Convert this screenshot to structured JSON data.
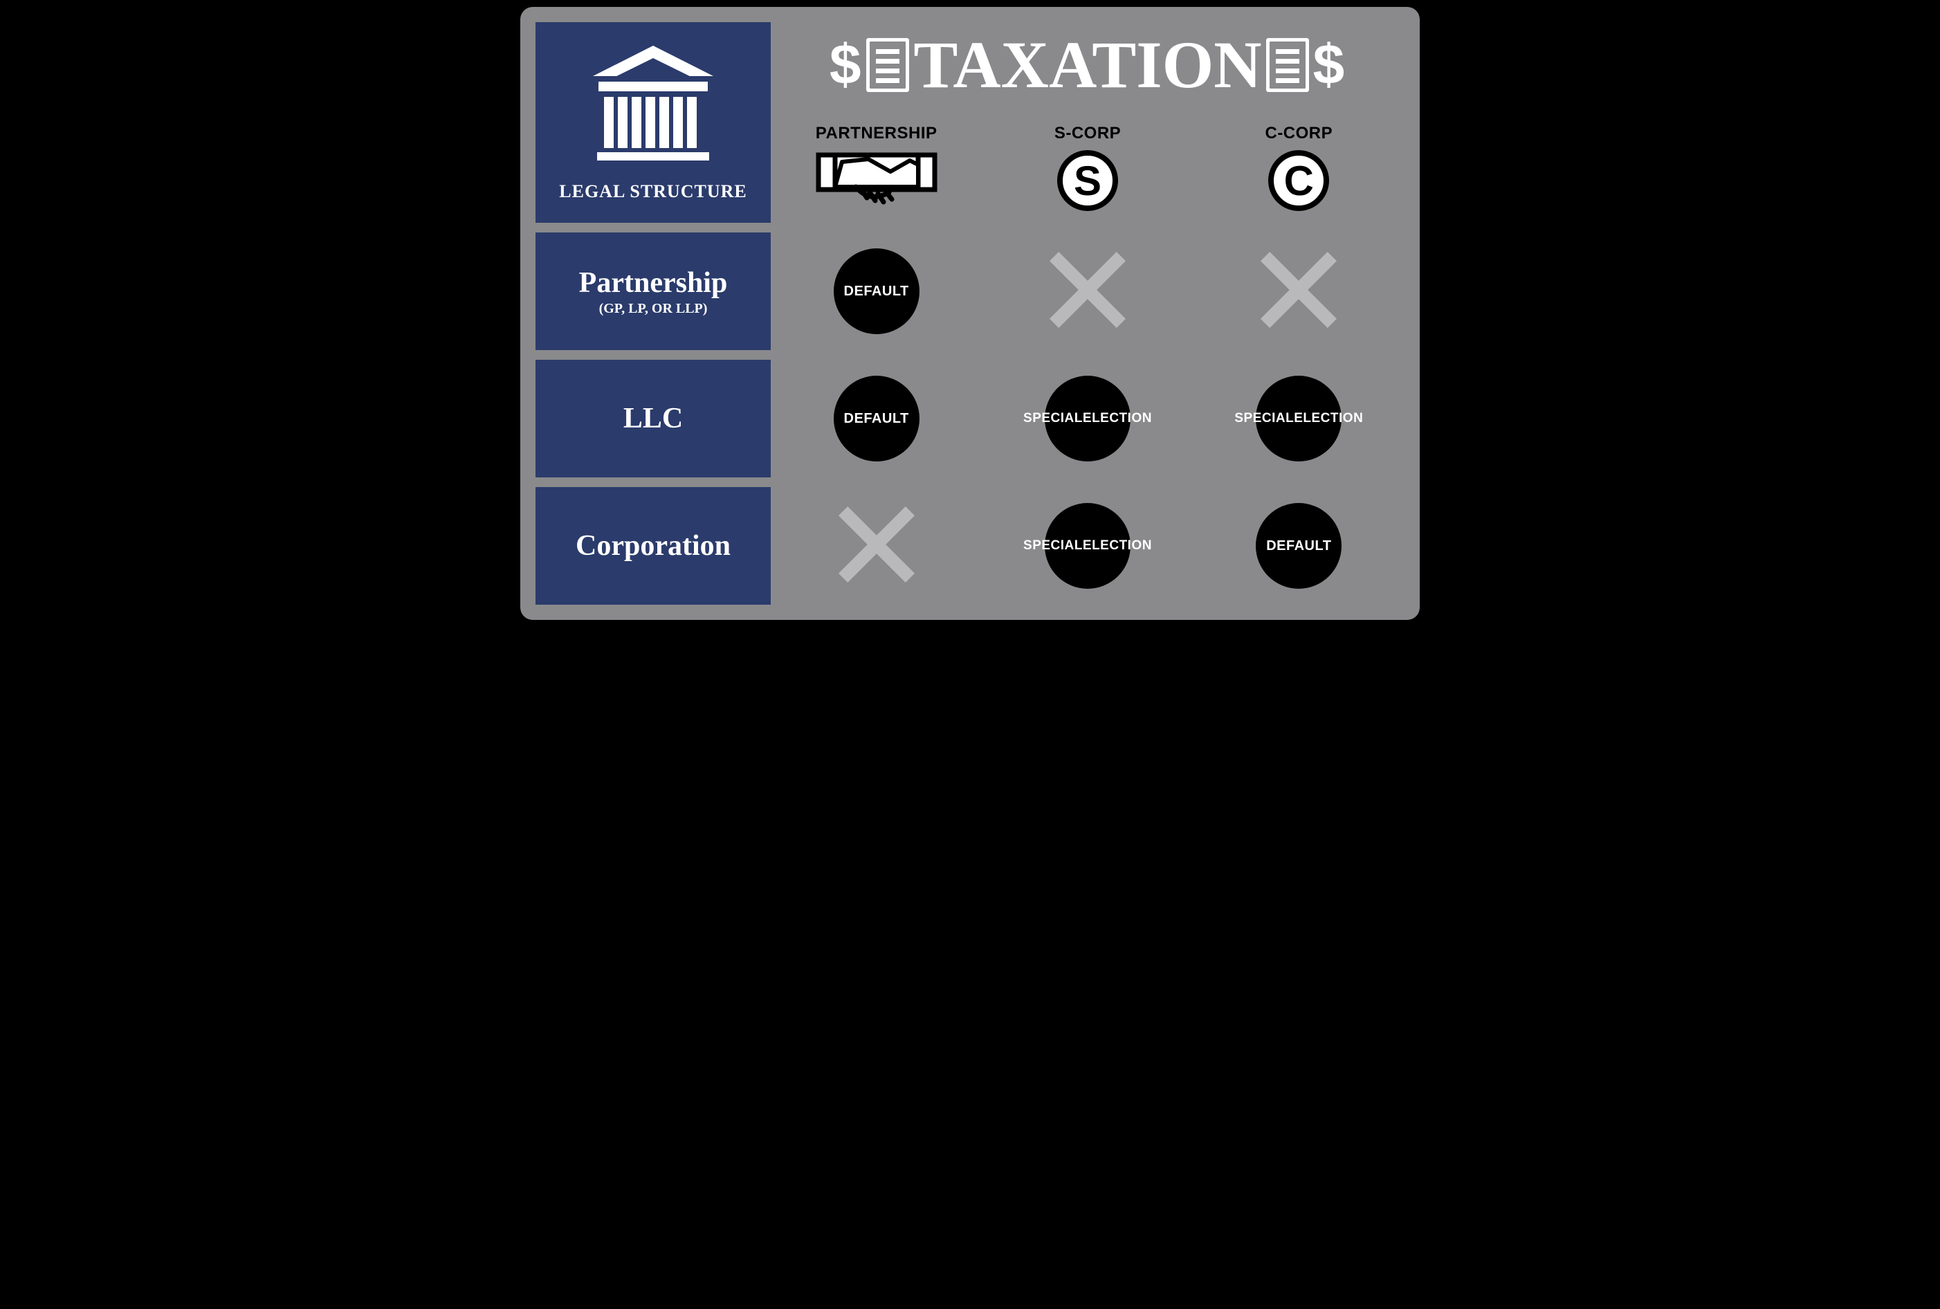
{
  "colors": {
    "panel_bg": "#8a8a8c",
    "box_bg": "#2b3b6b",
    "text_light": "#ffffff",
    "circle_bg": "#000000",
    "cross_fill": "#b9b9bb",
    "accent_black": "#000000"
  },
  "header": {
    "legal_structure_label": "LEGAL STRUCTURE",
    "title_word": "TAXATION",
    "dollar": "$"
  },
  "columns": [
    {
      "label": "PARTNERSHIP",
      "icon": "handshake"
    },
    {
      "label": "S-CORP",
      "icon": "s-circle"
    },
    {
      "label": "C-CORP",
      "icon": "c-circle"
    }
  ],
  "rows": [
    {
      "title": "Partnership",
      "subtitle": "(GP, LP, OR LLP)",
      "cells": [
        {
          "type": "circle",
          "text": "DEFAULT"
        },
        {
          "type": "cross"
        },
        {
          "type": "cross"
        }
      ]
    },
    {
      "title": "LLC",
      "subtitle": "",
      "cells": [
        {
          "type": "circle",
          "text": "DEFAULT"
        },
        {
          "type": "circle",
          "text": "SPECIAL\nELECTION"
        },
        {
          "type": "circle",
          "text": "SPECIAL\nELECTION"
        }
      ]
    },
    {
      "title": "Corporation",
      "subtitle": "",
      "cells": [
        {
          "type": "cross"
        },
        {
          "type": "circle",
          "text": "SPECIAL\nELECTION"
        },
        {
          "type": "circle",
          "text": "DEFAULT"
        }
      ]
    }
  ]
}
